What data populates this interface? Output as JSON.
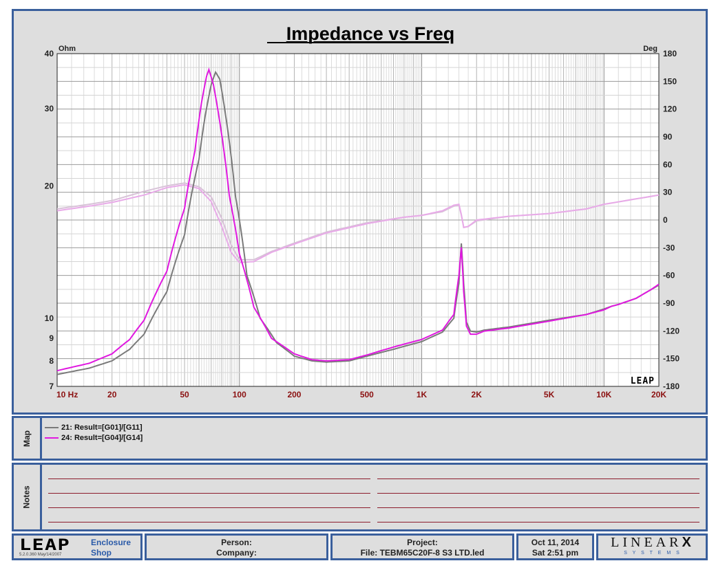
{
  "chart_data": {
    "type": "line",
    "title": "Impedance vs Freq",
    "y_left_unit": "Ohm",
    "y_right_unit": "Deg",
    "x_scale": "log",
    "x_range_hz": [
      10,
      20000
    ],
    "y_left_scale": "log",
    "y_left_range": [
      7,
      40
    ],
    "y_right_range": [
      -180,
      180
    ],
    "x_tick_labels": [
      {
        "v": 10,
        "label": "10  Hz"
      },
      {
        "v": 20,
        "label": "20"
      },
      {
        "v": 50,
        "label": "50"
      },
      {
        "v": 100,
        "label": "100"
      },
      {
        "v": 200,
        "label": "200"
      },
      {
        "v": 500,
        "label": "500"
      },
      {
        "v": 1000,
        "label": "1K"
      },
      {
        "v": 2000,
        "label": "2K"
      },
      {
        "v": 5000,
        "label": "5K"
      },
      {
        "v": 10000,
        "label": "10K"
      },
      {
        "v": 20000,
        "label": "20K"
      }
    ],
    "y_left_ticks": [
      {
        "v": 7,
        "label": "7"
      },
      {
        "v": 8,
        "label": "8"
      },
      {
        "v": 9,
        "label": "9"
      },
      {
        "v": 10,
        "label": "10"
      },
      {
        "v": 20,
        "label": "20"
      },
      {
        "v": 30,
        "label": "30"
      },
      {
        "v": 40,
        "label": "40"
      }
    ],
    "y_right_ticks": [
      180,
      150,
      120,
      90,
      60,
      30,
      0,
      -30,
      -60,
      -90,
      -120,
      -150,
      -180
    ],
    "grid": true,
    "logo": "LEAP",
    "series": [
      {
        "name": "21: Result=[G01]/[G11]",
        "color": "#7a7a7a",
        "phase_color": "#d8c2d8",
        "impedance": [
          [
            10,
            7.45
          ],
          [
            15,
            7.7
          ],
          [
            20,
            8.0
          ],
          [
            25,
            8.5
          ],
          [
            30,
            9.2
          ],
          [
            40,
            11.5
          ],
          [
            50,
            15.5
          ],
          [
            60,
            23
          ],
          [
            65,
            29
          ],
          [
            70,
            34
          ],
          [
            74,
            36.3
          ],
          [
            78,
            35
          ],
          [
            85,
            28
          ],
          [
            95,
            19
          ],
          [
            110,
            12.5
          ],
          [
            130,
            10
          ],
          [
            160,
            8.8
          ],
          [
            200,
            8.2
          ],
          [
            250,
            8.0
          ],
          [
            300,
            7.95
          ],
          [
            400,
            8.0
          ],
          [
            500,
            8.2
          ],
          [
            700,
            8.5
          ],
          [
            1000,
            8.85
          ],
          [
            1300,
            9.3
          ],
          [
            1500,
            10
          ],
          [
            1600,
            12
          ],
          [
            1650,
            14.8
          ],
          [
            1700,
            12
          ],
          [
            1760,
            9.8
          ],
          [
            1850,
            9.35
          ],
          [
            2000,
            9.3
          ],
          [
            2200,
            9.4
          ],
          [
            3000,
            9.55
          ],
          [
            5000,
            9.9
          ],
          [
            8000,
            10.2
          ],
          [
            10000,
            10.5
          ],
          [
            11000,
            10.65
          ],
          [
            12000,
            10.75
          ],
          [
            15000,
            11.1
          ],
          [
            18000,
            11.6
          ],
          [
            20000,
            11.9
          ]
        ],
        "phase": [
          [
            10,
            12
          ],
          [
            15,
            17
          ],
          [
            20,
            21
          ],
          [
            30,
            31
          ],
          [
            40,
            37
          ],
          [
            50,
            40
          ],
          [
            60,
            36
          ],
          [
            70,
            25
          ],
          [
            80,
            2
          ],
          [
            90,
            -27
          ],
          [
            100,
            -43
          ],
          [
            120,
            -43
          ],
          [
            150,
            -34
          ],
          [
            200,
            -25
          ],
          [
            300,
            -13
          ],
          [
            500,
            -3
          ],
          [
            800,
            3
          ],
          [
            1000,
            5
          ],
          [
            1300,
            9
          ],
          [
            1500,
            15
          ],
          [
            1600,
            16
          ],
          [
            1650,
            5
          ],
          [
            1700,
            -8
          ],
          [
            1800,
            -7
          ],
          [
            2000,
            -1
          ],
          [
            3000,
            4
          ],
          [
            5000,
            7
          ],
          [
            8000,
            12
          ],
          [
            10000,
            17
          ],
          [
            20000,
            27
          ]
        ]
      },
      {
        "name": "24: Result=[G04]/[G14]",
        "color": "#e018e0",
        "phase_color": "#e8aae8",
        "impedance": [
          [
            10,
            7.6
          ],
          [
            15,
            7.9
          ],
          [
            20,
            8.3
          ],
          [
            25,
            8.95
          ],
          [
            30,
            9.9
          ],
          [
            40,
            12.8
          ],
          [
            50,
            17.8
          ],
          [
            57,
            24
          ],
          [
            62,
            31
          ],
          [
            66,
            35.5
          ],
          [
            68,
            36.8
          ],
          [
            72,
            34
          ],
          [
            78,
            28
          ],
          [
            88,
            19
          ],
          [
            100,
            14
          ],
          [
            120,
            10.6
          ],
          [
            150,
            9.0
          ],
          [
            200,
            8.3
          ],
          [
            250,
            8.05
          ],
          [
            300,
            8.0
          ],
          [
            400,
            8.05
          ],
          [
            500,
            8.25
          ],
          [
            700,
            8.6
          ],
          [
            1000,
            8.95
          ],
          [
            1300,
            9.4
          ],
          [
            1500,
            10.2
          ],
          [
            1600,
            12.5
          ],
          [
            1650,
            14.5
          ],
          [
            1700,
            11.5
          ],
          [
            1760,
            9.6
          ],
          [
            1850,
            9.2
          ],
          [
            2000,
            9.2
          ],
          [
            2200,
            9.35
          ],
          [
            3000,
            9.5
          ],
          [
            5000,
            9.85
          ],
          [
            8000,
            10.2
          ],
          [
            10000,
            10.45
          ],
          [
            11000,
            10.65
          ],
          [
            12000,
            10.75
          ],
          [
            15000,
            11.1
          ],
          [
            18000,
            11.6
          ],
          [
            20000,
            11.95
          ]
        ],
        "phase": [
          [
            10,
            10
          ],
          [
            15,
            15
          ],
          [
            20,
            19
          ],
          [
            30,
            27
          ],
          [
            40,
            35
          ],
          [
            50,
            38
          ],
          [
            60,
            34
          ],
          [
            70,
            20
          ],
          [
            80,
            -7
          ],
          [
            90,
            -35
          ],
          [
            100,
            -46
          ],
          [
            120,
            -45
          ],
          [
            150,
            -35
          ],
          [
            200,
            -26
          ],
          [
            300,
            -14
          ],
          [
            500,
            -4
          ],
          [
            800,
            3
          ],
          [
            1000,
            5
          ],
          [
            1300,
            10
          ],
          [
            1500,
            16
          ],
          [
            1600,
            17
          ],
          [
            1650,
            6
          ],
          [
            1700,
            -8
          ],
          [
            1800,
            -7
          ],
          [
            2000,
            0
          ],
          [
            3000,
            4
          ],
          [
            5000,
            7
          ],
          [
            8000,
            12
          ],
          [
            10000,
            17
          ],
          [
            20000,
            27
          ]
        ]
      }
    ]
  },
  "map": {
    "label": "Map",
    "legend": [
      {
        "text": "21: Result=[G01]/[G11]",
        "color": "#7a7a7a"
      },
      {
        "text": "24: Result=[G04]/[G14]",
        "color": "#e018e0"
      }
    ]
  },
  "notes": {
    "label": "Notes"
  },
  "footer": {
    "logo": "LEAP",
    "version": "5.2.0.360  May/14/2007",
    "product_line1": "Enclosure",
    "product_line2": "Shop",
    "person_label": "Person:",
    "company_label": "Company:",
    "project_label": "Project:",
    "file_label": "File: TEBM65C20F-8 S3 LTD.led",
    "date": "Oct 11, 2014",
    "time": "Sat  2:51 pm",
    "brand_name": "LINEAR",
    "brand_mark": "X",
    "brand_sub": "S Y S T E M S"
  }
}
